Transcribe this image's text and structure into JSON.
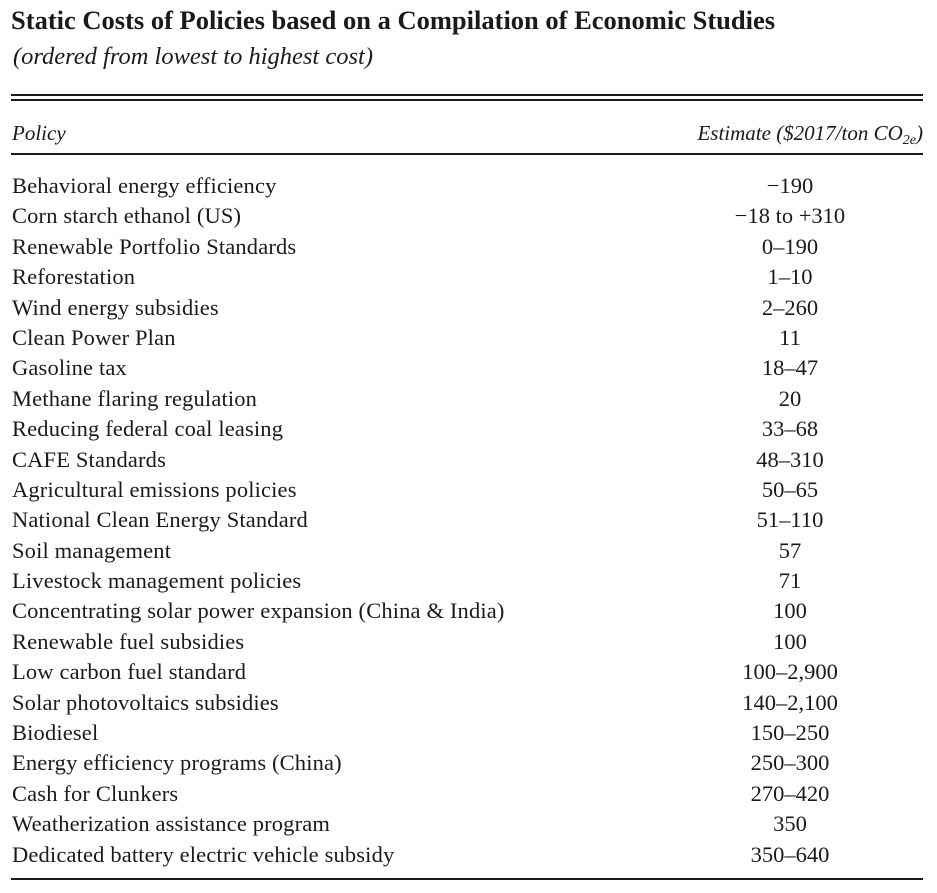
{
  "title": "Static Costs of Policies based on a Compilation of Economic Studies",
  "subtitle": "(ordered from lowest to highest cost)",
  "table": {
    "headers": {
      "policy": "Policy",
      "estimate_prefix": "Estimate ($2017/ton CO",
      "estimate_sub": "2e",
      "estimate_suffix": ")"
    },
    "rows": [
      {
        "policy": "Behavioral energy efficiency",
        "estimate": "−190"
      },
      {
        "policy": "Corn starch ethanol (US)",
        "estimate": "−18 to +310"
      },
      {
        "policy": "Renewable Portfolio Standards",
        "estimate": "0–190"
      },
      {
        "policy": "Reforestation",
        "estimate": "1–10"
      },
      {
        "policy": "Wind energy subsidies",
        "estimate": "2–260"
      },
      {
        "policy": "Clean Power Plan",
        "estimate": "11"
      },
      {
        "policy": "Gasoline tax",
        "estimate": "18–47"
      },
      {
        "policy": "Methane flaring regulation",
        "estimate": "20"
      },
      {
        "policy": "Reducing federal coal leasing",
        "estimate": "33–68"
      },
      {
        "policy": "CAFE Standards",
        "estimate": "48–310"
      },
      {
        "policy": "Agricultural emissions policies",
        "estimate": "50–65"
      },
      {
        "policy": "National Clean Energy Standard",
        "estimate": "51–110"
      },
      {
        "policy": "Soil management",
        "estimate": "57"
      },
      {
        "policy": "Livestock management policies",
        "estimate": "71"
      },
      {
        "policy": "Concentrating solar power expansion (China & India)",
        "estimate": "100"
      },
      {
        "policy": "Renewable fuel subsidies",
        "estimate": "100"
      },
      {
        "policy": "Low carbon fuel standard",
        "estimate": "100–2,900"
      },
      {
        "policy": "Solar photovoltaics subsidies",
        "estimate": "140–2,100"
      },
      {
        "policy": "Biodiesel",
        "estimate": "150–250"
      },
      {
        "policy": "Energy efficiency programs (China)",
        "estimate": "250–300"
      },
      {
        "policy": "Cash for Clunkers",
        "estimate": "270–420"
      },
      {
        "policy": "Weatherization assistance program",
        "estimate": "350"
      },
      {
        "policy": "Dedicated battery electric vehicle subsidy",
        "estimate": "350–640"
      }
    ]
  }
}
